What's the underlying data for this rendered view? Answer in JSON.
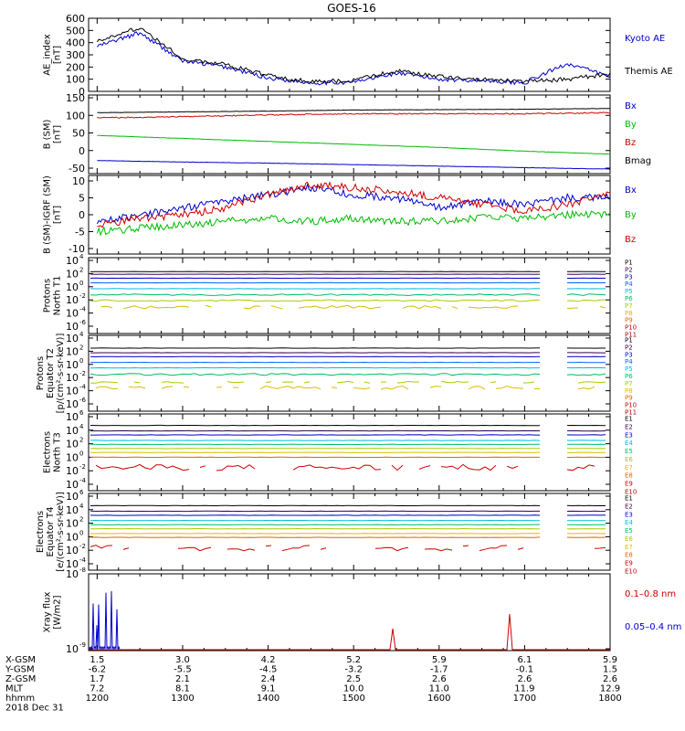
{
  "title": "GOES-16",
  "panels": [
    {
      "key": "ae",
      "ylabel": [
        "AE_index",
        "[nT]"
      ],
      "yticks": [
        "600",
        "500",
        "400",
        "300",
        "200",
        "100",
        "0"
      ],
      "legend": [
        {
          "label": "Kyoto AE",
          "color": "#0000cc"
        },
        {
          "label": "Themis AE",
          "color": "#000000"
        }
      ]
    },
    {
      "key": "bsm",
      "ylabel": [
        "B (SM)",
        "[nT]"
      ],
      "yticks": [
        "150",
        "100",
        "50",
        "0",
        "-50"
      ],
      "legend": [
        {
          "label": "Bx",
          "color": "#0000cc"
        },
        {
          "label": "By",
          "color": "#00bb00"
        },
        {
          "label": "Bz",
          "color": "#cc0000"
        },
        {
          "label": "Bmag",
          "color": "#000000"
        }
      ]
    },
    {
      "key": "bigrf",
      "ylabel": [
        "B (SM)-IGRF (SM)",
        "[nT]"
      ],
      "yticks": [
        "10",
        "5",
        "0",
        "-5",
        "-10"
      ],
      "legend": [
        {
          "label": "Bx",
          "color": "#0000cc"
        },
        {
          "label": "By",
          "color": "#00bb00"
        },
        {
          "label": "Bz",
          "color": "#cc0000"
        }
      ]
    },
    {
      "key": "pnt1",
      "ylabel": [
        "Protons",
        "North T1"
      ],
      "yticks": [
        "10",
        "10",
        "10",
        "10",
        "10",
        "10"
      ],
      "yexp": [
        "4",
        "2",
        "0",
        "-2",
        "-4",
        "-6"
      ],
      "legend": [
        {
          "label": "P1",
          "color": "#000000"
        },
        {
          "label": "P2",
          "color": "#3a0050"
        },
        {
          "label": "P3",
          "color": "#0000cc"
        },
        {
          "label": "P4",
          "color": "#0066ff"
        },
        {
          "label": "P5",
          "color": "#00bbdd"
        },
        {
          "label": "P6",
          "color": "#00bb66"
        },
        {
          "label": "P7",
          "color": "#aacc00"
        },
        {
          "label": "P8",
          "color": "#ddbb00"
        },
        {
          "label": "P9",
          "color": "#dd6600"
        },
        {
          "label": "P10",
          "color": "#cc0000"
        },
        {
          "label": "P11",
          "color": "#bb0000"
        }
      ]
    },
    {
      "key": "pet2",
      "ylabel": [
        "Protons",
        "Equator T2",
        "[p/(cm²-s-sr-keV)]"
      ],
      "yticks": [
        "10",
        "10",
        "10",
        "10",
        "10",
        "10"
      ],
      "yexp": [
        "4",
        "2",
        "0",
        "-2",
        "-4",
        "-6"
      ],
      "legend": [
        {
          "label": "P1",
          "color": "#000000"
        },
        {
          "label": "P2",
          "color": "#3a0050"
        },
        {
          "label": "P3",
          "color": "#0000cc"
        },
        {
          "label": "P4",
          "color": "#0066ff"
        },
        {
          "label": "P5",
          "color": "#00bbdd"
        },
        {
          "label": "P6",
          "color": "#00bb66"
        },
        {
          "label": "P7",
          "color": "#aacc00"
        },
        {
          "label": "P8",
          "color": "#ddbb00"
        },
        {
          "label": "P9",
          "color": "#dd6600"
        },
        {
          "label": "P10",
          "color": "#cc0000"
        },
        {
          "label": "P11",
          "color": "#bb0000"
        }
      ]
    },
    {
      "key": "ent3",
      "ylabel": [
        "Electrons",
        "North T3"
      ],
      "yticks": [
        "10",
        "10",
        "10",
        "10",
        "10",
        "10"
      ],
      "yexp": [
        "6",
        "4",
        "2",
        "0",
        "-2",
        "-4"
      ],
      "legend": [
        {
          "label": "E1",
          "color": "#000000"
        },
        {
          "label": "E2",
          "color": "#3a0050"
        },
        {
          "label": "E3",
          "color": "#0000cc"
        },
        {
          "label": "E4",
          "color": "#00bbdd"
        },
        {
          "label": "E5",
          "color": "#00bb66"
        },
        {
          "label": "E6",
          "color": "#aacc00"
        },
        {
          "label": "E7",
          "color": "#ddbb00"
        },
        {
          "label": "E8",
          "color": "#dd6600"
        },
        {
          "label": "E9",
          "color": "#cc0000"
        },
        {
          "label": "E10",
          "color": "#bb0000"
        }
      ]
    },
    {
      "key": "eet4",
      "ylabel": [
        "Electrons",
        "Equator T4",
        "[e/(cm²-s-sr-keV)]"
      ],
      "yticks": [
        "10",
        "10",
        "10",
        "10",
        "10",
        "10"
      ],
      "yexp": [
        "6",
        "4",
        "2",
        "0",
        "-2",
        "-4"
      ],
      "legend": [
        {
          "label": "E1",
          "color": "#000000"
        },
        {
          "label": "E2",
          "color": "#3a0050"
        },
        {
          "label": "E3",
          "color": "#0000cc"
        },
        {
          "label": "E4",
          "color": "#00bbdd"
        },
        {
          "label": "E5",
          "color": "#00bb66"
        },
        {
          "label": "E6",
          "color": "#aacc00"
        },
        {
          "label": "E7",
          "color": "#ddbb00"
        },
        {
          "label": "E8",
          "color": "#dd6600"
        },
        {
          "label": "E9",
          "color": "#cc0000"
        },
        {
          "label": "E10",
          "color": "#bb0000"
        }
      ]
    },
    {
      "key": "xray",
      "ylabel": [
        "Xray flux",
        "[W/m2]"
      ],
      "yticks": [
        "10",
        "10"
      ],
      "yexp": [
        "-8",
        "-9"
      ],
      "legend": [
        {
          "label": "0.1–0.8 nm",
          "color": "#cc0000"
        },
        {
          "label": "0.05–0.4 nm",
          "color": "#0000cc"
        }
      ]
    }
  ],
  "time_axis": {
    "row_labels": [
      "X-GSM",
      "Y-GSM",
      "Z-GSM",
      "MLT",
      "hhmm"
    ],
    "rows": [
      [
        "1.5",
        "3.0",
        "4.2",
        "5.2",
        "5.9",
        "6.1",
        "5.9"
      ],
      [
        "-6.2",
        "-5.5",
        "-4.5",
        "-3.2",
        "-1.7",
        "-0.1",
        "1.5"
      ],
      [
        "1.7",
        "2.1",
        "2.4",
        "2.5",
        "2.6",
        "2.6",
        "2.6"
      ],
      [
        "7.2",
        "8.1",
        "9.1",
        "10.0",
        "11.0",
        "11.9",
        "12.9"
      ],
      [
        "1200",
        "1300",
        "1400",
        "1500",
        "1600",
        "1700",
        "1800"
      ]
    ],
    "date": "2018 Dec 31"
  },
  "chart_data": [
    {
      "type": "line",
      "title": "AE index",
      "ylabel": "AE_index [nT]",
      "ylim": [
        0,
        600
      ],
      "x_hours": [
        12.0,
        12.5,
        13.0,
        13.5,
        14.0,
        14.5,
        15.0,
        15.5,
        16.0,
        16.5,
        17.0,
        17.5,
        18.0
      ],
      "series": [
        {
          "name": "Kyoto AE",
          "values": [
            370,
            480,
            250,
            200,
            110,
            70,
            75,
            150,
            100,
            90,
            70,
            230,
            120
          ]
        },
        {
          "name": "Themis AE",
          "values": [
            420,
            520,
            270,
            220,
            130,
            80,
            90,
            170,
            120,
            100,
            80,
            100,
            140
          ]
        }
      ]
    },
    {
      "type": "line",
      "title": "B (SM)",
      "ylabel": "B (SM) [nT]",
      "ylim": [
        -60,
        150
      ],
      "x_hours": [
        12.0,
        13.0,
        14.0,
        15.0,
        16.0,
        17.0,
        18.0
      ],
      "series": [
        {
          "name": "Bx",
          "values": [
            -25,
            -29,
            -32,
            -36,
            -40,
            -44,
            -48
          ]
        },
        {
          "name": "By",
          "values": [
            42,
            34,
            26,
            18,
            10,
            0,
            -8
          ]
        },
        {
          "name": "Bz",
          "values": [
            89,
            92,
            97,
            100,
            100,
            100,
            103
          ]
        },
        {
          "name": "Bmag",
          "values": [
            103,
            105,
            107,
            110,
            111,
            112,
            114
          ]
        }
      ]
    },
    {
      "type": "line",
      "title": "B (SM)-IGRF (SM)",
      "ylabel": "B (SM)-IGRF (SM) [nT]",
      "ylim": [
        -10,
        10
      ],
      "x_hours": [
        12.0,
        12.5,
        13.0,
        13.5,
        14.0,
        14.5,
        15.0,
        15.5,
        16.0,
        16.5,
        17.0,
        17.5,
        18.0
      ],
      "series": [
        {
          "name": "Bx",
          "values": [
            -2,
            0,
            2,
            4,
            6,
            8,
            6,
            5,
            2,
            4,
            3,
            5,
            5
          ]
        },
        {
          "name": "By",
          "values": [
            -5,
            -4,
            -3,
            -2,
            -1,
            -2,
            -1,
            -2,
            -2,
            -1,
            -1,
            0,
            0
          ]
        },
        {
          "name": "Bz",
          "values": [
            -3,
            -1,
            0,
            2,
            6,
            9,
            8,
            7,
            5,
            3,
            1,
            3,
            6
          ]
        }
      ]
    },
    {
      "type": "line",
      "title": "Protons North T1",
      "yscale": "log",
      "ylim": [
        1e-06,
        10000.0
      ],
      "gaps_hours": [
        [
          17.21,
          17.46
        ]
      ],
      "series": [
        {
          "name": "P1",
          "values": [
            200
          ]
        },
        {
          "name": "P2",
          "values": [
            80
          ]
        },
        {
          "name": "P3",
          "values": [
            20
          ]
        },
        {
          "name": "P4",
          "values": [
            4
          ]
        },
        {
          "name": "P5",
          "values": [
            0.5
          ]
        },
        {
          "name": "P6",
          "values": [
            0.06
          ]
        },
        {
          "name": "P7",
          "values": [
            0.008
          ]
        },
        {
          "name": "P8",
          "values": [
            0.0008
          ]
        }
      ]
    },
    {
      "type": "line",
      "title": "Protons Equator T2",
      "yscale": "log",
      "ylim": [
        1e-06,
        10000.0
      ],
      "gaps_hours": [
        [
          17.21,
          17.46
        ]
      ],
      "series": [
        {
          "name": "P1",
          "values": [
            300
          ]
        },
        {
          "name": "P2",
          "values": [
            60
          ]
        },
        {
          "name": "P3",
          "values": [
            15
          ]
        },
        {
          "name": "P4",
          "values": [
            2
          ]
        },
        {
          "name": "P5",
          "values": [
            0.3
          ]
        },
        {
          "name": "P6",
          "values": [
            0.03
          ]
        },
        {
          "name": "P7",
          "values": [
            0.002
          ]
        },
        {
          "name": "P8",
          "values": [
            0.0003
          ]
        }
      ]
    },
    {
      "type": "line",
      "title": "Electrons North T3",
      "yscale": "log",
      "ylim": [
        0.0001,
        1000000.0
      ],
      "gaps_hours": [
        [
          17.21,
          17.46
        ]
      ],
      "series": [
        {
          "name": "E1",
          "values": [
            50000
          ]
        },
        {
          "name": "E2",
          "values": [
            8000
          ]
        },
        {
          "name": "E3",
          "values": [
            2000
          ]
        },
        {
          "name": "E4",
          "values": [
            300
          ]
        },
        {
          "name": "E5",
          "values": [
            80
          ]
        },
        {
          "name": "E6",
          "values": [
            20
          ]
        },
        {
          "name": "E7",
          "values": [
            5
          ]
        },
        {
          "name": "E8",
          "values": [
            1
          ]
        },
        {
          "name": "E9",
          "values": [
            0.03
          ]
        }
      ]
    },
    {
      "type": "line",
      "title": "Electrons Equator T4",
      "yscale": "log",
      "ylim": [
        0.0001,
        1000000.0
      ],
      "gaps_hours": [
        [
          17.21,
          17.46
        ]
      ],
      "series": [
        {
          "name": "E1",
          "values": [
            40000
          ]
        },
        {
          "name": "E2",
          "values": [
            6000
          ]
        },
        {
          "name": "E3",
          "values": [
            1500
          ]
        },
        {
          "name": "E4",
          "values": [
            250
          ]
        },
        {
          "name": "E5",
          "values": [
            60
          ]
        },
        {
          "name": "E6",
          "values": [
            15
          ]
        },
        {
          "name": "E7",
          "values": [
            3
          ]
        },
        {
          "name": "E8",
          "values": [
            0.8
          ]
        },
        {
          "name": "E9",
          "values": [
            0.02
          ]
        }
      ]
    },
    {
      "type": "line",
      "title": "Xray flux",
      "yscale": "log",
      "ylim": [
        1e-09,
        1e-08
      ],
      "series": [
        {
          "name": "0.05–0.4 nm",
          "values": [
            1.9e-09
          ]
        },
        {
          "name": "0.1–0.8 nm",
          "values": [
            1e-09
          ]
        }
      ]
    }
  ]
}
